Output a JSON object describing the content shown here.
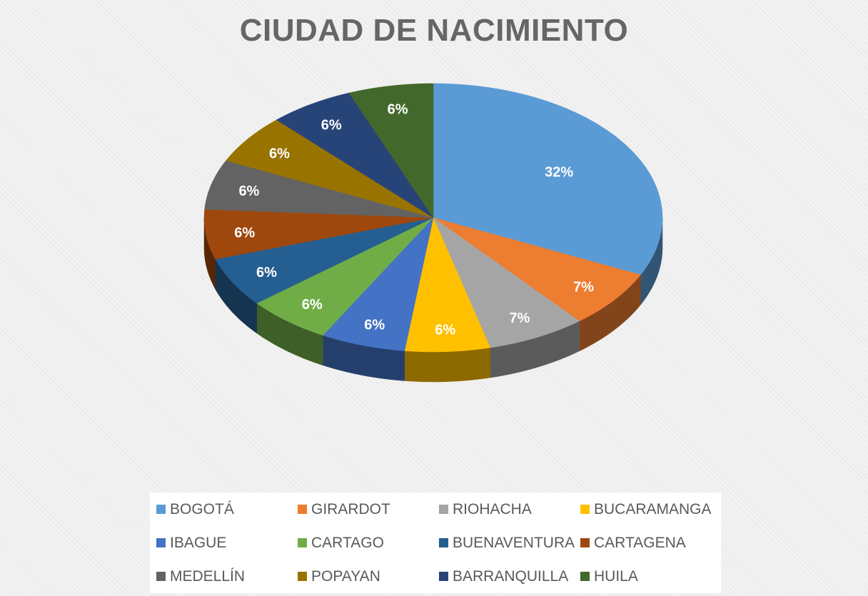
{
  "chart_data": {
    "type": "pie",
    "title": "CIUDAD DE NACIMIENTO",
    "categories": [
      "BOGOTÁ",
      "GIRARDOT",
      "RIOHACHA",
      "BUCARAMANGA",
      "IBAGUE",
      "CARTAGO",
      "BUENAVENTURA",
      "CARTAGENA",
      "MEDELLÍN",
      "POPAYAN",
      "BARRANQUILLA",
      "HUILA"
    ],
    "values": [
      32,
      7,
      7,
      6,
      6,
      6,
      6,
      6,
      6,
      6,
      6,
      6
    ],
    "value_labels": [
      "32%",
      "7%",
      "7%",
      "6%",
      "6%",
      "6%",
      "6%",
      "6%",
      "6%",
      "6%",
      "6%",
      "6%"
    ],
    "colors": [
      "#5b9bd5",
      "#ed7d31",
      "#a5a5a5",
      "#ffc000",
      "#4472c4",
      "#70ad47",
      "#255e91",
      "#9e480e",
      "#636363",
      "#997300",
      "#264478",
      "#43682b"
    ],
    "legend_position": "bottom",
    "style": "3d"
  }
}
